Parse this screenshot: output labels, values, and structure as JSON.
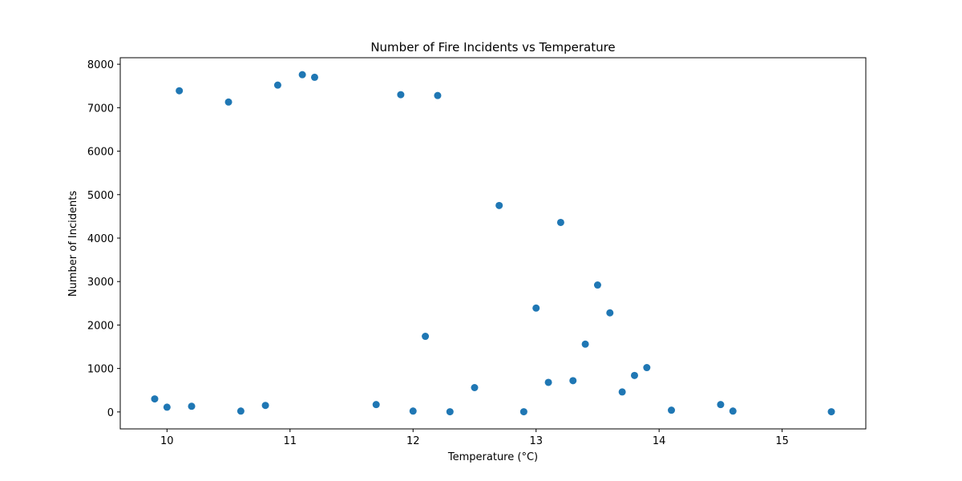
{
  "chart_data": {
    "type": "scatter",
    "title": "Number of Fire Incidents vs Temperature",
    "xlabel": "Temperature (°C)",
    "ylabel": "Number of Incidents",
    "xlim": [
      9.62,
      15.68
    ],
    "ylim": [
      -390,
      8150
    ],
    "xticks": [
      10,
      11,
      12,
      13,
      14,
      15
    ],
    "yticks": [
      0,
      1000,
      2000,
      3000,
      4000,
      5000,
      6000,
      7000,
      8000
    ],
    "grid": false,
    "color": "#1f77b4",
    "points": [
      {
        "x": 9.9,
        "y": 300
      },
      {
        "x": 10.0,
        "y": 110
      },
      {
        "x": 10.1,
        "y": 7390
      },
      {
        "x": 10.2,
        "y": 130
      },
      {
        "x": 10.5,
        "y": 7130
      },
      {
        "x": 10.6,
        "y": 20
      },
      {
        "x": 10.8,
        "y": 150
      },
      {
        "x": 10.9,
        "y": 7520
      },
      {
        "x": 11.1,
        "y": 7760
      },
      {
        "x": 11.2,
        "y": 7700
      },
      {
        "x": 11.7,
        "y": 170
      },
      {
        "x": 11.9,
        "y": 7300
      },
      {
        "x": 12.0,
        "y": 20
      },
      {
        "x": 12.1,
        "y": 1740
      },
      {
        "x": 12.2,
        "y": 7280
      },
      {
        "x": 12.3,
        "y": 5
      },
      {
        "x": 12.5,
        "y": 560
      },
      {
        "x": 12.7,
        "y": 4750
      },
      {
        "x": 12.9,
        "y": 5
      },
      {
        "x": 13.0,
        "y": 2390
      },
      {
        "x": 13.1,
        "y": 680
      },
      {
        "x": 13.2,
        "y": 4360
      },
      {
        "x": 13.3,
        "y": 720
      },
      {
        "x": 13.4,
        "y": 1560
      },
      {
        "x": 13.5,
        "y": 2920
      },
      {
        "x": 13.6,
        "y": 2280
      },
      {
        "x": 13.7,
        "y": 460
      },
      {
        "x": 13.8,
        "y": 840
      },
      {
        "x": 13.9,
        "y": 1020
      },
      {
        "x": 14.1,
        "y": 40
      },
      {
        "x": 14.5,
        "y": 170
      },
      {
        "x": 14.6,
        "y": 20
      },
      {
        "x": 15.4,
        "y": 5
      }
    ]
  }
}
